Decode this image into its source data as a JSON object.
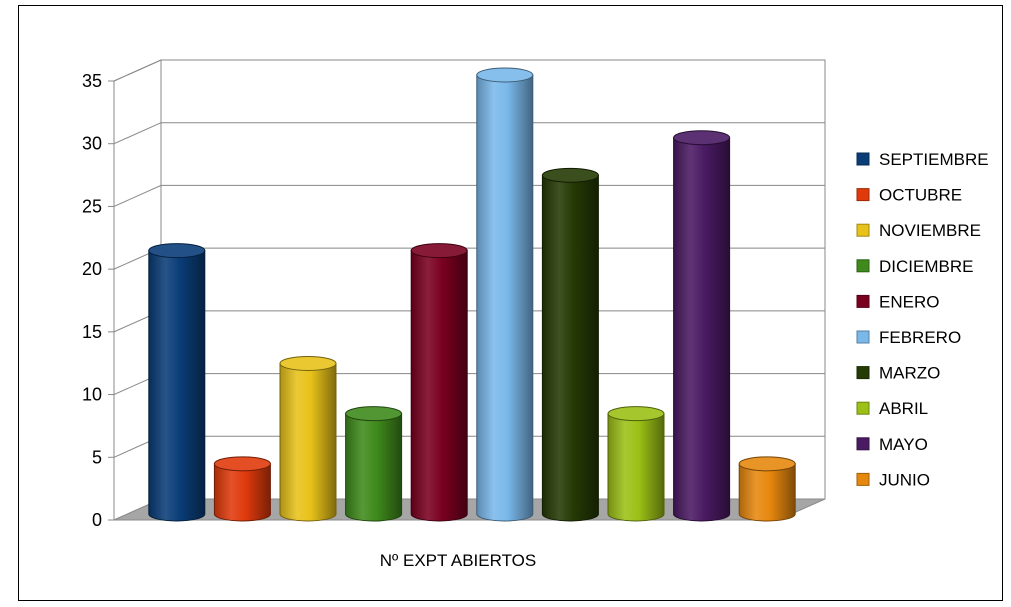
{
  "chart_data": {
    "type": "bar",
    "style": "3d-cylinder",
    "categories": [
      "Nº EXPT ABIERTOS"
    ],
    "series": [
      {
        "name": "SEPTIEMBRE",
        "values": [
          21
        ],
        "color": "#0a3d78"
      },
      {
        "name": "OCTUBRE",
        "values": [
          4
        ],
        "color": "#e03a0c"
      },
      {
        "name": "NOVIEMBRE",
        "values": [
          12
        ],
        "color": "#e8c21a"
      },
      {
        "name": "DICIEMBRE",
        "values": [
          8
        ],
        "color": "#3f8a1c"
      },
      {
        "name": "ENERO",
        "values": [
          21
        ],
        "color": "#7a0020"
      },
      {
        "name": "FEBRERO",
        "values": [
          35
        ],
        "color": "#7ab8ea"
      },
      {
        "name": "MARZO",
        "values": [
          27
        ],
        "color": "#253a05"
      },
      {
        "name": "ABRIL",
        "values": [
          8
        ],
        "color": "#9cc016"
      },
      {
        "name": "MAYO",
        "values": [
          30
        ],
        "color": "#4a1a63"
      },
      {
        "name": "JUNIO",
        "values": [
          4
        ],
        "color": "#e7880e"
      }
    ],
    "title": "",
    "xlabel": "",
    "ylabel": "",
    "ylim": [
      0,
      35
    ],
    "yticks": [
      "0",
      "5",
      "10",
      "15",
      "20",
      "25",
      "30",
      "35"
    ],
    "grid": true,
    "legend_position": "right"
  }
}
